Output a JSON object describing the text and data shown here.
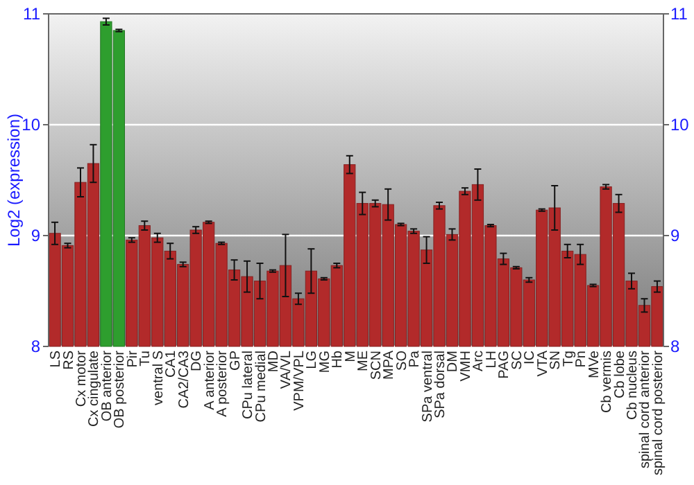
{
  "chart_data": {
    "type": "bar",
    "ylabel": "Log2 (expression)",
    "categories": [
      "LS",
      "RS",
      "Cx motor",
      "Cx cingulate",
      "OB anterior",
      "OB posterior",
      "Pir",
      "Tu",
      "ventral S",
      "CA1",
      "CA2/CA3",
      "DG",
      "A anterior",
      "A posterior",
      "GP",
      "CPu lateral",
      "CPu medial",
      "MD",
      "VA/VL",
      "VPM/VPL",
      "LG",
      "MG",
      "Hb",
      "M",
      "ME",
      "SCN",
      "MPA",
      "SO",
      "Pa",
      "SPa ventral",
      "SPa dorsal",
      "DM",
      "VMH",
      "Arc",
      "LH",
      "PAG",
      "SC",
      "IC",
      "VTA",
      "SN",
      "Tg",
      "Pn",
      "MVe",
      "Cb vermis",
      "Cb lobe",
      "Cb nucleus",
      "spinal cord anterior",
      "spinal cord posterior"
    ],
    "values": [
      9.02,
      8.91,
      9.48,
      9.65,
      10.93,
      10.85,
      8.96,
      9.09,
      8.98,
      8.86,
      8.74,
      9.05,
      9.12,
      8.93,
      8.69,
      8.63,
      8.59,
      8.68,
      8.73,
      8.43,
      8.68,
      8.61,
      8.73,
      9.64,
      9.29,
      9.29,
      9.28,
      9.1,
      9.04,
      8.87,
      9.27,
      9.01,
      9.4,
      9.46,
      9.09,
      8.79,
      8.71,
      8.6,
      9.23,
      9.25,
      8.86,
      8.83,
      8.55,
      9.44,
      9.29,
      8.59,
      8.37,
      8.54
    ],
    "errors": [
      0.1,
      0.02,
      0.13,
      0.17,
      0.03,
      0.01,
      0.02,
      0.04,
      0.04,
      0.07,
      0.02,
      0.03,
      0.01,
      0.01,
      0.09,
      0.14,
      0.16,
      0.01,
      0.28,
      0.05,
      0.2,
      0.01,
      0.02,
      0.08,
      0.1,
      0.03,
      0.14,
      0.01,
      0.02,
      0.12,
      0.03,
      0.05,
      0.03,
      0.14,
      0.01,
      0.05,
      0.01,
      0.02,
      0.01,
      0.2,
      0.06,
      0.09,
      0.01,
      0.02,
      0.08,
      0.07,
      0.06,
      0.05
    ],
    "colors": [
      "#b22a2a",
      "#b22a2a",
      "#b22a2a",
      "#b22a2a",
      "#2e9e2e",
      "#2e9e2e",
      "#b22a2a",
      "#b22a2a",
      "#b22a2a",
      "#b22a2a",
      "#b22a2a",
      "#b22a2a",
      "#b22a2a",
      "#b22a2a",
      "#b22a2a",
      "#b22a2a",
      "#b22a2a",
      "#b22a2a",
      "#b22a2a",
      "#b22a2a",
      "#b22a2a",
      "#b22a2a",
      "#b22a2a",
      "#b22a2a",
      "#b22a2a",
      "#b22a2a",
      "#b22a2a",
      "#b22a2a",
      "#b22a2a",
      "#b22a2a",
      "#b22a2a",
      "#b22a2a",
      "#b22a2a",
      "#b22a2a",
      "#b22a2a",
      "#b22a2a",
      "#b22a2a",
      "#b22a2a",
      "#b22a2a",
      "#b22a2a",
      "#b22a2a",
      "#b22a2a",
      "#b22a2a",
      "#b22a2a",
      "#b22a2a",
      "#b22a2a",
      "#b22a2a",
      "#b22a2a"
    ],
    "ylim": [
      8,
      11
    ],
    "yticks": [
      8,
      9,
      10,
      11
    ],
    "y2lim": [
      8,
      11
    ],
    "y2ticks": [
      8,
      9,
      10,
      11
    ],
    "grid": "y"
  }
}
